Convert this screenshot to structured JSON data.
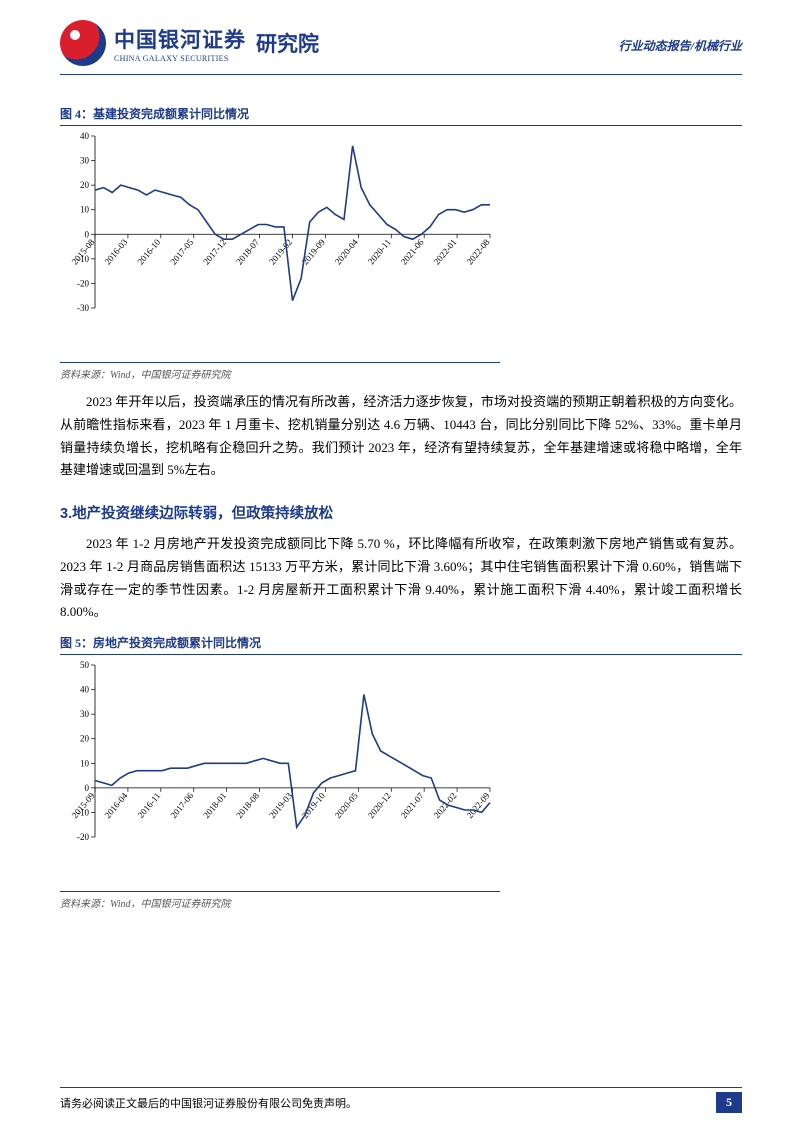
{
  "header": {
    "logo_cn": "中国银河证券",
    "logo_en": "CHINA GALAXY SECURITIES",
    "dept": "研究院",
    "tag": "行业动态报告/机械行业"
  },
  "chart4": {
    "title": "图 4：基建投资完成额累计同比情况",
    "type": "line",
    "ylim": [
      -30,
      40
    ],
    "ytick_step": 10,
    "line_color": "#1e3a8a",
    "axis_color": "#000000",
    "tick_fontsize": 9,
    "x_labels": [
      "2015-08",
      "2016-03",
      "2016-10",
      "2017-05",
      "2017-12",
      "2018-07",
      "2019-02",
      "2019-09",
      "2020-04",
      "2020-11",
      "2021-06",
      "2022-01",
      "2022-08"
    ],
    "x_positions": [
      0,
      1,
      2,
      3,
      4,
      5,
      6,
      7,
      8,
      9,
      10,
      11,
      12
    ],
    "values": [
      18,
      19,
      17,
      20,
      19,
      18,
      16,
      18,
      17,
      16,
      15,
      12,
      10,
      5,
      0,
      -2,
      -2,
      0,
      2,
      4,
      4,
      3,
      3,
      -27,
      -18,
      5,
      9,
      11,
      8,
      6,
      36,
      19,
      12,
      8,
      4,
      2,
      -1,
      -2,
      0,
      3,
      8,
      10,
      10,
      9,
      10,
      12,
      12
    ]
  },
  "chart4_source": "资料来源：Wind，中国银河证券研究院",
  "para1": "2023 年开年以后，投资端承压的情况有所改善，经济活力逐步恢复，市场对投资端的预期正朝着积极的方向变化。从前瞻性指标来看，2023 年 1 月重卡、挖机销量分别达 4.6 万辆、10443 台，同比分别同比下降 52%、33%。重卡单月销量持续负增长，挖机略有企稳回升之势。我们预计 2023 年，经济有望持续复苏，全年基建增速或将稳中略增，全年基建增速或回温到 5%左右。",
  "section3_title": "3.地产投资继续边际转弱，但政策持续放松",
  "para2": "2023 年 1-2 月房地产开发投资完成额同比下降 5.70 %，环比降幅有所收窄，在政策刺激下房地产销售或有复苏。2023 年 1-2 月商品房销售面积达 15133 万平方米，累计同比下滑 3.60%；其中住宅销售面积累计下滑 0.60%，销售端下滑或存在一定的季节性因素。1-2 月房屋新开工面积累计下滑 9.40%，累计施工面积下滑 4.40%，累计竣工面积增长 8.00%。",
  "chart5": {
    "title": "图 5：房地产投资完成额累计同比情况",
    "type": "line",
    "ylim": [
      -20,
      50
    ],
    "ytick_step": 10,
    "line_color": "#1e3a8a",
    "axis_color": "#000000",
    "tick_fontsize": 9,
    "x_labels": [
      "2015-09",
      "2016-04",
      "2016-11",
      "2017-06",
      "2018-01",
      "2018-08",
      "2019-03",
      "2019-10",
      "2020-05",
      "2020-12",
      "2021-07",
      "2022-02",
      "2022-09"
    ],
    "x_positions": [
      0,
      1,
      2,
      3,
      4,
      5,
      6,
      7,
      8,
      9,
      10,
      11,
      12
    ],
    "values": [
      3,
      2,
      1,
      4,
      6,
      7,
      7,
      7,
      7,
      8,
      8,
      8,
      9,
      10,
      10,
      10,
      10,
      10,
      10,
      11,
      12,
      11,
      10,
      10,
      -16,
      -11,
      -2,
      2,
      4,
      5,
      6,
      7,
      38,
      22,
      15,
      13,
      11,
      9,
      7,
      5,
      4,
      -5,
      -7,
      -8,
      -9,
      -9,
      -10,
      -6
    ]
  },
  "chart5_source": "资料来源：Wind，中国银河证券研究院",
  "footer": {
    "text": "请务必阅读正文最后的中国银河证券股份有限公司免责声明。",
    "page": "5"
  }
}
